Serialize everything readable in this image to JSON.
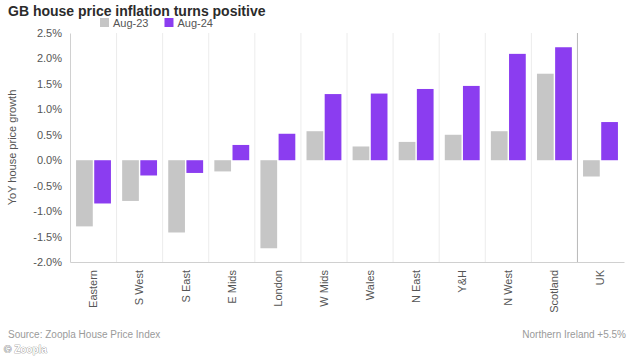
{
  "chart_data": {
    "type": "bar",
    "title": "GB house price inflation turns positive",
    "y_label": "YoY house price growth",
    "source": "Source: Zoopla House Price Index",
    "note": "Northern Ireland +5.5%",
    "credit": "© Zoopla",
    "categories": [
      "Eastern",
      "S West",
      "S East",
      "E Mids",
      "London",
      "W Mids",
      "Wales",
      "N East",
      "Y&H",
      "N West",
      "Scotland",
      "UK"
    ],
    "series": [
      {
        "name": "Aug-23",
        "color": "#c6c6c6",
        "values": [
          -1.3,
          -0.8,
          -1.42,
          -0.22,
          -1.73,
          0.57,
          0.27,
          0.36,
          0.5,
          0.57,
          1.7,
          -0.32
        ]
      },
      {
        "name": "Aug-24",
        "color": "#8b3df0",
        "values": [
          -0.85,
          -0.3,
          -0.25,
          0.3,
          0.52,
          1.3,
          1.31,
          1.4,
          1.46,
          2.09,
          2.22,
          0.75
        ]
      }
    ],
    "ylim": [
      -2.0,
      2.5
    ],
    "yticks": [
      {
        "value": -2.0,
        "label": "-2.0%"
      },
      {
        "value": -1.5,
        "label": "-1.5%"
      },
      {
        "value": -1.0,
        "label": "-1.0%"
      },
      {
        "value": -0.5,
        "label": "-0.5%"
      },
      {
        "value": 0.0,
        "label": "0.0%"
      },
      {
        "value": 0.5,
        "label": "0.5%"
      },
      {
        "value": 1.0,
        "label": "1.0%"
      },
      {
        "value": 1.5,
        "label": "1.5%"
      },
      {
        "value": 2.0,
        "label": "2.0%"
      },
      {
        "value": 2.5,
        "label": "2.5%"
      }
    ],
    "grid": false,
    "legend": "top-left"
  }
}
